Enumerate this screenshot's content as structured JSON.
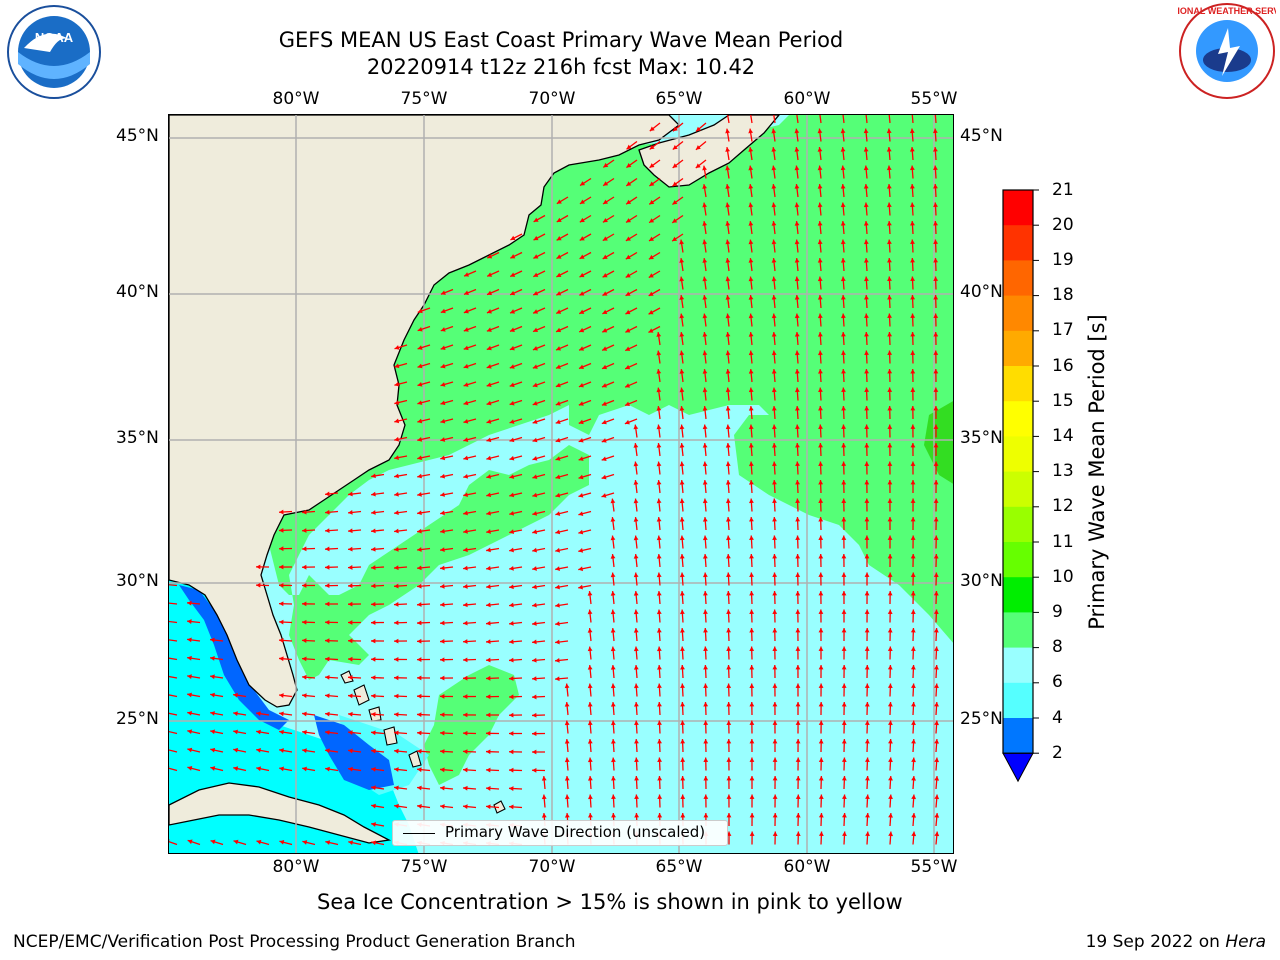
{
  "title_line1": "GEFS MEAN US East Coast Primary Wave Mean Period",
  "title_line2": "20220914 t12z 216h fcst   Max: 10.42",
  "logos": {
    "left": "NOAA",
    "right": "NATIONAL WEATHER SERVICE"
  },
  "map": {
    "lon_labels": [
      "80°W",
      "75°W",
      "70°W",
      "65°W",
      "60°W",
      "55°W"
    ],
    "lat_labels": [
      "45°N",
      "40°N",
      "35°N",
      "30°N",
      "25°N"
    ],
    "legend_text": "Primary Wave Direction (unscaled)",
    "colors": {
      "land": "#efecdc",
      "arrow": "#ff0000",
      "grid": "#b0b0b0",
      "class_8_9": "#99ffff",
      "class_9_10": "#55ff77",
      "class_10_11": "#33dd22",
      "class_6_8": "#55ffff",
      "class_4_6": "#00ffff",
      "class_2_4": "#0066ff"
    }
  },
  "colorbar": {
    "ticks": [
      "21",
      "20",
      "19",
      "18",
      "17",
      "16",
      "15",
      "14",
      "13",
      "12",
      "11",
      "10",
      "9",
      "8",
      "6",
      "4",
      "2"
    ],
    "colors": [
      "#ff0000",
      "#ff3300",
      "#ff6600",
      "#ff8800",
      "#ffaa00",
      "#ffdd00",
      "#ffff00",
      "#eeff00",
      "#ccff00",
      "#99ff00",
      "#66ff00",
      "#00ee00",
      "#55ff77",
      "#99ffff",
      "#55ffff",
      "#00ffff",
      "#0077ff"
    ],
    "extend_color": "#0000ff",
    "label": "Primary Wave Mean Period [s]"
  },
  "subtitle": "Sea Ice Concentration > 15% is shown in pink to yellow",
  "footer_left": "NCEP/EMC/Verification Post Processing Product Generation Branch",
  "footer_date": "19 Sep 2022 on ",
  "footer_host": "Hera"
}
